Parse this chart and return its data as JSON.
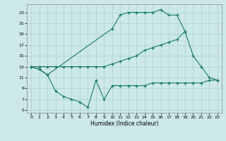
{
  "bg_color": "#cce8e8",
  "grid_color": "#aad0d0",
  "line_color": "#1a7a6a",
  "xlabel": "Humidex (Indice chaleur)",
  "xlim": [
    -0.5,
    23.5
  ],
  "ylim": [
    4.5,
    24.5
  ],
  "yticks": [
    5,
    7,
    9,
    11,
    13,
    15,
    17,
    19,
    21,
    23
  ],
  "xticks": [
    0,
    1,
    2,
    3,
    4,
    5,
    6,
    7,
    8,
    9,
    10,
    11,
    12,
    13,
    14,
    15,
    16,
    17,
    18,
    19,
    20,
    21,
    22,
    23
  ],
  "line_top_x": [
    0,
    1,
    2,
    10,
    11,
    12,
    13,
    14,
    15,
    16,
    17,
    18,
    19,
    20,
    21,
    22,
    23
  ],
  "line_top_y": [
    13,
    12.5,
    11.5,
    20.0,
    22.5,
    23.0,
    23.0,
    23.0,
    23.0,
    23.5,
    22.5,
    22.5,
    19.5,
    15.0,
    13.0,
    11.0,
    10.5
  ],
  "line_mid_x": [
    0,
    1,
    2,
    3,
    4,
    5,
    6,
    7,
    8,
    9,
    10,
    11,
    12,
    13,
    14,
    15,
    16,
    17,
    18,
    19
  ],
  "line_mid_y": [
    13,
    13,
    13,
    13,
    13,
    13,
    13,
    13,
    13,
    13,
    13.5,
    14.0,
    14.5,
    15.0,
    16.0,
    16.5,
    17.0,
    17.5,
    18.0,
    19.5
  ],
  "line_bot_x": [
    0,
    1,
    2,
    3,
    4,
    5,
    6,
    7,
    8,
    9,
    10,
    11,
    12,
    13,
    14,
    15,
    16,
    17,
    18,
    19,
    20,
    21,
    22,
    23
  ],
  "line_bot_y": [
    13,
    12.5,
    11.5,
    8.5,
    7.5,
    7.0,
    6.5,
    5.5,
    10.5,
    7.0,
    9.5,
    9.5,
    9.5,
    9.5,
    9.5,
    10.0,
    10.0,
    10.0,
    10.0,
    10.0,
    10.0,
    10.0,
    10.5,
    10.5
  ]
}
